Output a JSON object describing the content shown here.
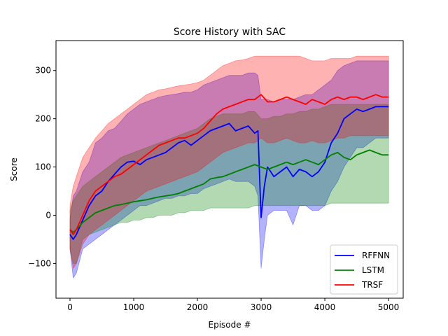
{
  "chart_data": {
    "type": "line",
    "title": "Score History with SAC",
    "xlabel": "Episode #",
    "ylabel": "Score",
    "xlim": [
      -220,
      5230
    ],
    "ylim": [
      -172,
      362
    ],
    "xticks": [
      0,
      1000,
      2000,
      3000,
      4000,
      5000
    ],
    "yticks": [
      -100,
      0,
      100,
      200,
      300
    ],
    "xtick_labels": [
      "0",
      "1000",
      "2000",
      "3000",
      "4000",
      "5000"
    ],
    "ytick_labels": [
      "−100",
      "0",
      "100",
      "200",
      "300"
    ],
    "grid": false,
    "legend_position": "lower-right",
    "series": [
      {
        "name": "RFFNN",
        "color": "#0000ff",
        "x": [
          0,
          50,
          100,
          200,
          300,
          400,
          500,
          600,
          700,
          800,
          900,
          1000,
          1100,
          1200,
          1300,
          1400,
          1500,
          1600,
          1700,
          1800,
          1900,
          2000,
          2100,
          2200,
          2300,
          2400,
          2500,
          2600,
          2700,
          2800,
          2900,
          2950,
          3000,
          3050,
          3100,
          3200,
          3300,
          3400,
          3500,
          3600,
          3700,
          3800,
          3900,
          4000,
          4100,
          4200,
          4300,
          4400,
          4500,
          4600,
          4700,
          4800,
          4900,
          5000
        ],
        "y": [
          -40,
          -50,
          -40,
          -10,
          20,
          40,
          50,
          70,
          85,
          100,
          110,
          112,
          105,
          115,
          120,
          125,
          130,
          140,
          150,
          155,
          145,
          155,
          165,
          175,
          180,
          185,
          190,
          175,
          180,
          185,
          170,
          175,
          -5,
          60,
          100,
          80,
          90,
          100,
          80,
          95,
          90,
          80,
          90,
          110,
          150,
          170,
          200,
          210,
          220,
          215,
          220,
          225,
          225,
          225
        ],
        "upper": [
          -10,
          40,
          50,
          90,
          110,
          150,
          160,
          175,
          180,
          195,
          210,
          220,
          230,
          235,
          240,
          245,
          248,
          250,
          252,
          255,
          255,
          260,
          270,
          275,
          280,
          285,
          290,
          290,
          290,
          295,
          295,
          290,
          240,
          240,
          240,
          235,
          240,
          240,
          240,
          245,
          250,
          250,
          260,
          270,
          280,
          300,
          310,
          315,
          320,
          320,
          320,
          320,
          320,
          320
        ],
        "lower": [
          -70,
          -130,
          -120,
          -70,
          -60,
          -50,
          -40,
          -30,
          -20,
          -10,
          0,
          10,
          20,
          20,
          25,
          30,
          35,
          35,
          40,
          40,
          45,
          45,
          55,
          60,
          65,
          70,
          75,
          70,
          70,
          70,
          60,
          40,
          -110,
          -50,
          0,
          10,
          10,
          10,
          -20,
          20,
          20,
          10,
          10,
          20,
          50,
          70,
          100,
          120,
          140,
          140,
          150,
          160,
          160,
          160
        ]
      },
      {
        "name": "LSTM",
        "color": "#008000",
        "x": [
          0,
          50,
          100,
          200,
          300,
          400,
          500,
          600,
          700,
          800,
          900,
          1000,
          1100,
          1200,
          1300,
          1400,
          1500,
          1600,
          1700,
          1800,
          1900,
          2000,
          2100,
          2200,
          2300,
          2400,
          2500,
          2600,
          2700,
          2800,
          2900,
          3000,
          3100,
          3200,
          3300,
          3400,
          3500,
          3600,
          3700,
          3800,
          3900,
          4000,
          4100,
          4200,
          4300,
          4400,
          4500,
          4600,
          4700,
          4800,
          4900,
          5000
        ],
        "y": [
          -30,
          -35,
          -30,
          -15,
          -5,
          5,
          10,
          15,
          20,
          22,
          25,
          28,
          30,
          32,
          35,
          38,
          40,
          42,
          45,
          50,
          55,
          60,
          65,
          75,
          78,
          80,
          85,
          90,
          95,
          100,
          105,
          100,
          95,
          100,
          105,
          110,
          105,
          110,
          115,
          110,
          105,
          115,
          125,
          130,
          120,
          115,
          125,
          130,
          135,
          130,
          125,
          125
        ],
        "upper": [
          10,
          30,
          40,
          60,
          70,
          80,
          90,
          100,
          110,
          120,
          125,
          130,
          135,
          140,
          145,
          150,
          155,
          160,
          165,
          170,
          175,
          180,
          190,
          200,
          205,
          210,
          210,
          210,
          210,
          215,
          215,
          200,
          200,
          205,
          205,
          210,
          210,
          215,
          215,
          220,
          220,
          225,
          230,
          230,
          230,
          230,
          230,
          230,
          230,
          230,
          230,
          230
        ],
        "lower": [
          -70,
          -100,
          -100,
          -50,
          -40,
          -35,
          -30,
          -25,
          -20,
          -15,
          -15,
          -10,
          -10,
          -5,
          -5,
          0,
          0,
          0,
          5,
          5,
          10,
          10,
          10,
          15,
          15,
          15,
          15,
          15,
          15,
          15,
          20,
          20,
          20,
          20,
          20,
          20,
          20,
          20,
          20,
          20,
          20,
          20,
          25,
          25,
          25,
          25,
          25,
          25,
          25,
          25,
          25,
          25
        ]
      },
      {
        "name": "TRSF",
        "color": "#ff0000",
        "x": [
          0,
          50,
          100,
          200,
          300,
          400,
          500,
          600,
          700,
          800,
          900,
          1000,
          1100,
          1200,
          1300,
          1400,
          1500,
          1600,
          1700,
          1800,
          1900,
          2000,
          2100,
          2200,
          2300,
          2400,
          2500,
          2600,
          2700,
          2800,
          2900,
          3000,
          3100,
          3200,
          3300,
          3400,
          3500,
          3600,
          3700,
          3800,
          3900,
          4000,
          4100,
          4200,
          4300,
          4400,
          4500,
          4600,
          4700,
          4800,
          4900,
          5000
        ],
        "y": [
          -30,
          -40,
          -30,
          0,
          30,
          50,
          60,
          70,
          80,
          85,
          95,
          105,
          115,
          125,
          135,
          145,
          150,
          155,
          160,
          160,
          165,
          170,
          180,
          195,
          210,
          220,
          225,
          230,
          235,
          240,
          240,
          250,
          235,
          235,
          240,
          245,
          240,
          235,
          230,
          240,
          235,
          230,
          240,
          245,
          240,
          245,
          245,
          240,
          245,
          250,
          245,
          245
        ],
        "upper": [
          20,
          60,
          80,
          120,
          140,
          160,
          175,
          190,
          200,
          210,
          220,
          230,
          240,
          250,
          255,
          260,
          262,
          265,
          268,
          270,
          272,
          275,
          280,
          290,
          300,
          310,
          315,
          320,
          322,
          325,
          330,
          330,
          330,
          330,
          330,
          330,
          330,
          330,
          325,
          320,
          320,
          320,
          325,
          325,
          325,
          325,
          330,
          330,
          330,
          330,
          330,
          330
        ],
        "lower": [
          -70,
          -110,
          -100,
          -60,
          -40,
          -30,
          -20,
          -10,
          0,
          10,
          20,
          30,
          40,
          50,
          55,
          60,
          65,
          70,
          75,
          80,
          85,
          90,
          100,
          110,
          120,
          130,
          135,
          140,
          145,
          150,
          150,
          160,
          150,
          150,
          155,
          160,
          155,
          150,
          150,
          155,
          150,
          150,
          155,
          160,
          160,
          165,
          165,
          165,
          165,
          165,
          165,
          165
        ]
      }
    ]
  }
}
